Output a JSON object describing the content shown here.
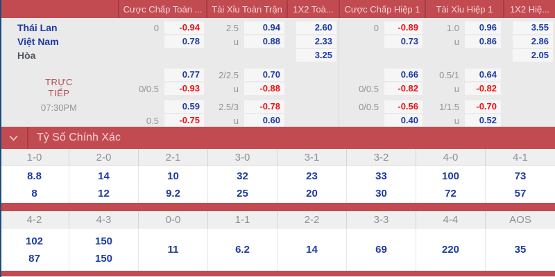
{
  "theme": {
    "header_red": "#c24b52",
    "header_divider_red": "#a73c43",
    "header_text_pink": "#f7d3d5",
    "body_bg_gray": "#eaeaea",
    "odds_box_bg": "#f6f6f6",
    "odds_blue": "#1c3aa5",
    "odds_red": "#ee1111",
    "line_gray": "#8f9499",
    "left_edge_blue": "#1b4d7e"
  },
  "odds_table": {
    "col_groups": [
      {
        "label": ""
      },
      {
        "label": "Cược Chấp Toàn ..."
      },
      {
        "label": "Tài Xỉu Toàn Trận"
      },
      {
        "label": "1X2 Toà..."
      },
      {
        "label": "Cược Chấp Hiệp 1"
      },
      {
        "label": "Tài Xỉu Hiệp 1"
      },
      {
        "label": "1X2 Hiệ..."
      }
    ],
    "main_groups": [
      [
        {
          "label": "Thái Lan",
          "kind": "team",
          "cells": [
            [
              "0",
              "line"
            ],
            [
              "-0.94",
              "neg"
            ],
            [
              "2.5",
              "line"
            ],
            [
              "0.94",
              "pos"
            ],
            [
              "2.60",
              "pos"
            ],
            [
              "0",
              "line"
            ],
            [
              "-0.89",
              "neg"
            ],
            [
              "1.0",
              "line"
            ],
            [
              "0.96",
              "pos"
            ],
            [
              "3.55",
              "pos"
            ]
          ]
        },
        {
          "label": "Việt Nam",
          "kind": "team",
          "cells": [
            [
              "",
              ""
            ],
            [
              "0.78",
              "pos"
            ],
            [
              "u",
              "line"
            ],
            [
              "0.88",
              "pos"
            ],
            [
              "2.33",
              "pos"
            ],
            [
              "",
              ""
            ],
            [
              "0.73",
              "pos"
            ],
            [
              "u",
              "line"
            ],
            [
              "0.86",
              "pos"
            ],
            [
              "2.86",
              "pos"
            ]
          ]
        },
        {
          "label": "Hòa",
          "kind": "draw",
          "cells": [
            [
              "",
              ""
            ],
            [
              "",
              ""
            ],
            [
              "",
              ""
            ],
            [
              "",
              ""
            ],
            [
              "3.25",
              "pos"
            ],
            [
              "",
              ""
            ],
            [
              "",
              ""
            ],
            [
              "",
              ""
            ],
            [
              "",
              ""
            ],
            [
              "2.05",
              "pos"
            ]
          ]
        }
      ]
    ],
    "live_groups": [
      [
        {
          "label": "",
          "kind": "",
          "cells": [
            [
              "",
              ""
            ],
            [
              "0.77",
              "pos"
            ],
            [
              "2/2.5",
              "line"
            ],
            [
              "0.70",
              "pos"
            ],
            [
              "",
              ""
            ],
            [
              "",
              ""
            ],
            [
              "0.66",
              "pos"
            ],
            [
              "0.5/1",
              "line"
            ],
            [
              "0.64",
              "pos"
            ],
            [
              "",
              ""
            ]
          ]
        },
        {
          "label": "",
          "kind": "",
          "cells": [
            [
              "0/0.5",
              "line"
            ],
            [
              "-0.93",
              "neg"
            ],
            [
              "u",
              "line"
            ],
            [
              "-0.88",
              "neg"
            ],
            [
              "",
              ""
            ],
            [
              "0/0.5",
              "line"
            ],
            [
              "-0.82",
              "neg"
            ],
            [
              "u",
              "line"
            ],
            [
              "-0.82",
              "neg"
            ],
            [
              "",
              ""
            ]
          ]
        }
      ],
      [
        {
          "label": "",
          "kind": "",
          "cells": [
            [
              "",
              ""
            ],
            [
              "0.59",
              "pos"
            ],
            [
              "2.5/3",
              "line"
            ],
            [
              "-0.78",
              "neg"
            ],
            [
              "",
              ""
            ],
            [
              "0/0.5",
              "line"
            ],
            [
              "-0.56",
              "neg"
            ],
            [
              "1/1.5",
              "line"
            ],
            [
              "-0.70",
              "neg"
            ],
            [
              "",
              ""
            ]
          ]
        },
        {
          "label": "",
          "kind": "",
          "cells": [
            [
              "0.5",
              "line"
            ],
            [
              "-0.75",
              "neg"
            ],
            [
              "u",
              "line"
            ],
            [
              "0.60",
              "pos"
            ],
            [
              "",
              ""
            ],
            [
              "",
              ""
            ],
            [
              "0.40",
              "pos"
            ],
            [
              "u",
              "line"
            ],
            [
              "0.52",
              "pos"
            ],
            [
              "",
              ""
            ]
          ]
        }
      ]
    ],
    "live_label_line1": "TRỰC",
    "live_label_line2": "TIẾP",
    "match_time": "07:30PM"
  },
  "correct_score": {
    "title": "Tỷ Số Chính Xác",
    "sections": [
      {
        "headers": [
          "1-0",
          "2-0",
          "2-1",
          "3-0",
          "3-1",
          "3-2",
          "4-0",
          "4-1"
        ],
        "values": [
          [
            "8.8",
            "8"
          ],
          [
            "14",
            "12"
          ],
          [
            "10",
            "9.2"
          ],
          [
            "32",
            "25"
          ],
          [
            "23",
            "20"
          ],
          [
            "33",
            "30"
          ],
          [
            "100",
            "72"
          ],
          [
            "73",
            "57"
          ]
        ]
      },
      {
        "headers": [
          "4-2",
          "4-3",
          "0-0",
          "1-1",
          "2-2",
          "3-3",
          "4-4",
          "AOS"
        ],
        "values": [
          [
            "102",
            "87"
          ],
          [
            "150",
            "150"
          ],
          [
            "11"
          ],
          [
            "6.2"
          ],
          [
            "14"
          ],
          [
            "69"
          ],
          [
            "220"
          ],
          [
            "35"
          ]
        ]
      }
    ]
  }
}
